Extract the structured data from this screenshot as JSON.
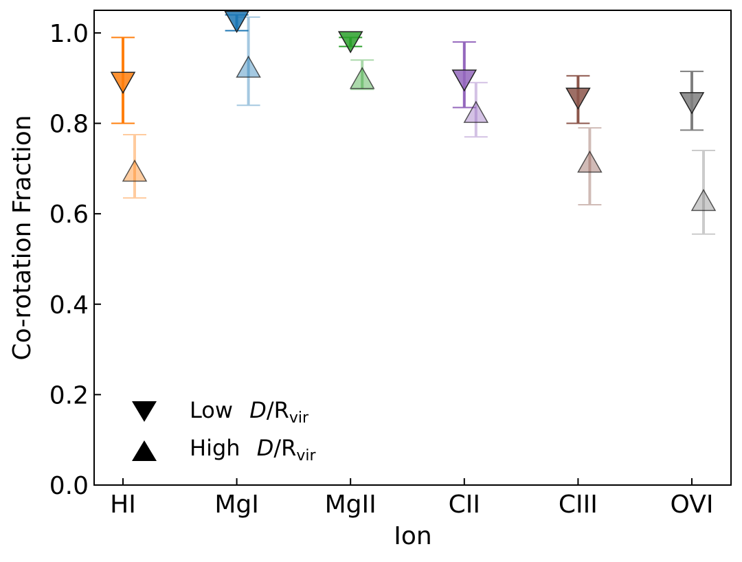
{
  "chart_data": {
    "type": "scatter",
    "title": "",
    "xlabel": "Ion",
    "ylabel": "Co-rotation Fraction",
    "ylim": [
      0.0,
      1.05
    ],
    "yticks": [
      "0.0",
      "0.2",
      "0.4",
      "0.6",
      "0.8",
      "1.0"
    ],
    "ytick_values": [
      0.0,
      0.2,
      0.4,
      0.6,
      0.8,
      1.0
    ],
    "categories": [
      "HI",
      "MgI",
      "MgII",
      "CII",
      "CIII",
      "OVI"
    ],
    "colors": [
      "#ff7f0e",
      "#1f77b4",
      "#2ca02c",
      "#9467bd",
      "#8c564b",
      "#7f7f7f"
    ],
    "grid": false,
    "legend_position": "lower-left",
    "series": [
      {
        "name": "Low D/Rvir",
        "marker": "triangle-down",
        "values": [
          0.89,
          1.025,
          0.98,
          0.895,
          0.855,
          0.845
        ],
        "err_low": [
          0.8,
          1.005,
          0.97,
          0.835,
          0.8,
          0.785
        ],
        "err_high": [
          0.99,
          1.04,
          0.99,
          0.98,
          0.905,
          0.915
        ]
      },
      {
        "name": "High D/Rvir",
        "marker": "triangle-up",
        "values": [
          0.695,
          0.925,
          0.9,
          0.825,
          0.715,
          0.63
        ],
        "err_low": [
          0.635,
          0.84,
          0.875,
          0.77,
          0.62,
          0.555
        ],
        "err_high": [
          0.775,
          1.035,
          0.94,
          0.89,
          0.79,
          0.74
        ]
      }
    ],
    "legend": {
      "low": {
        "prefix": "Low",
        "var": "D",
        "sep": "/R",
        "sub": "vir"
      },
      "high": {
        "prefix": "High",
        "var": "D",
        "sep": "/R",
        "sub": "vir"
      }
    }
  }
}
